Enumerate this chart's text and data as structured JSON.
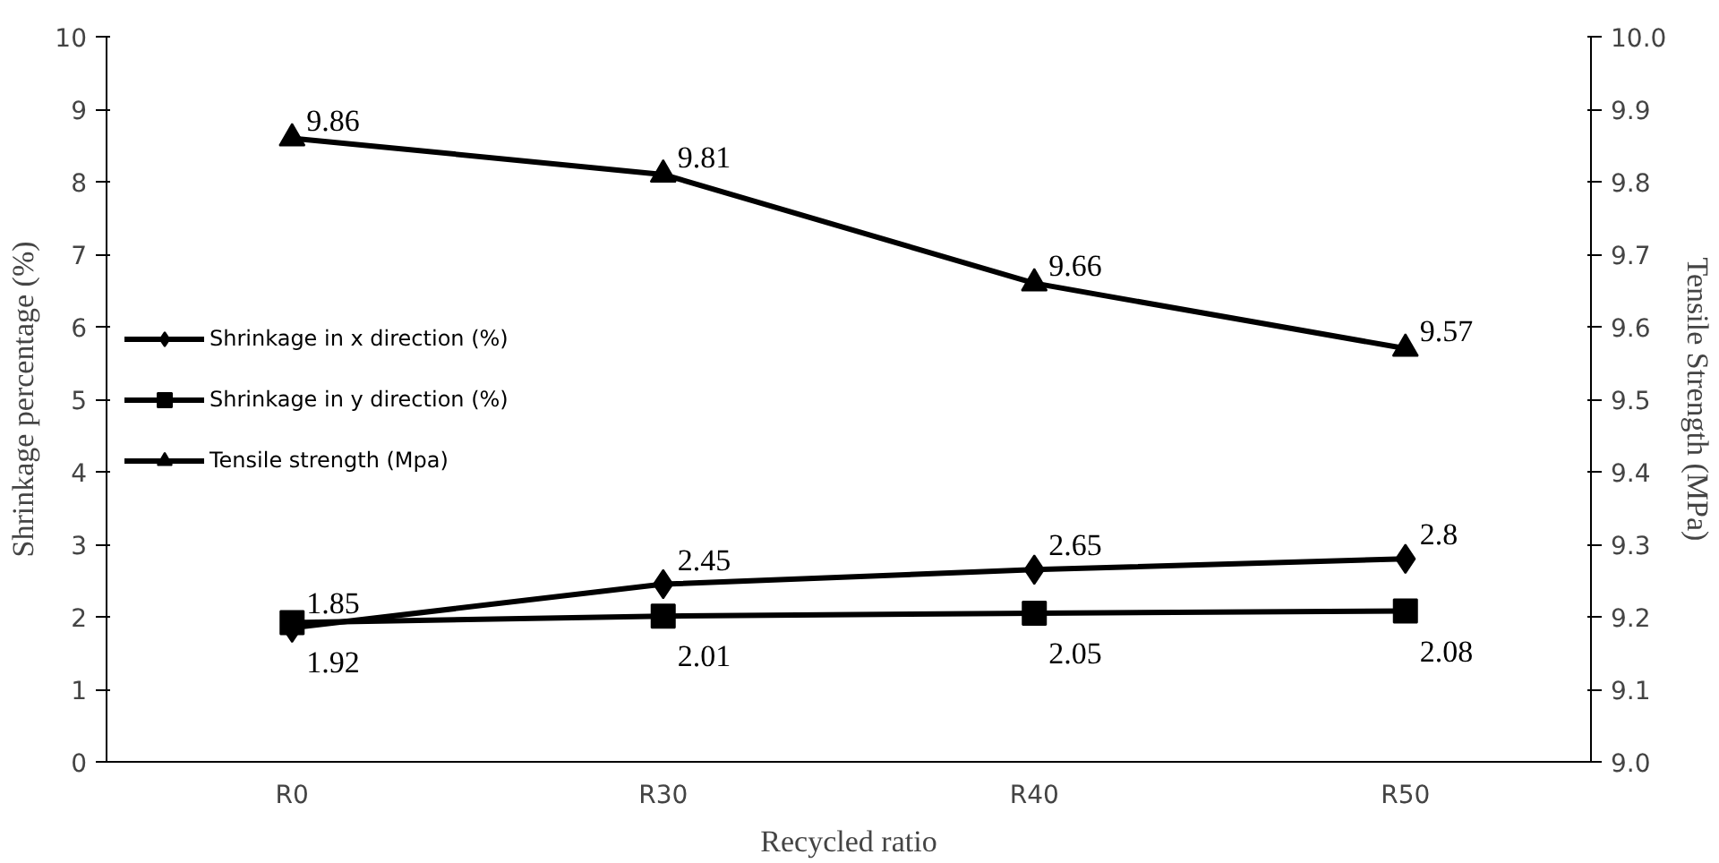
{
  "chart_data": {
    "type": "line",
    "xlabel": "Recycled ratio",
    "ylabel": "Shrinkage percentage (%)",
    "y2label": "Tensile Strength (MPa)",
    "categories": [
      "R0",
      "R30",
      "R40",
      "R50"
    ],
    "series": [
      {
        "name": "Shrinkage in x direction (%)",
        "color": "#000000",
        "marker": "diamond",
        "values": [
          1.85,
          2.45,
          2.65,
          2.8
        ]
      },
      {
        "name": "Shrinkage in y direction (%)",
        "color": "#000000",
        "marker": "square",
        "values": [
          1.92,
          2.01,
          2.05,
          2.08
        ]
      },
      {
        "name": "Tensile strength (Mpa)",
        "color": "#000000",
        "marker": "triangle",
        "axis": "y2",
        "values": [
          9.86,
          9.81,
          9.66,
          9.57
        ]
      }
    ],
    "ylim": [
      0,
      10
    ],
    "yticks": [
      0,
      1,
      2,
      3,
      4,
      5,
      6,
      7,
      8,
      9,
      10
    ],
    "y2lim": [
      9.0,
      10.0
    ],
    "y2ticks": [
      {
        "value": 9.0,
        "label": "9.0"
      },
      {
        "value": 9.1,
        "label": "9.1"
      },
      {
        "value": 9.2,
        "label": "9.2"
      },
      {
        "value": 9.3,
        "label": "9.3"
      },
      {
        "value": 9.4,
        "label": "9.4"
      },
      {
        "value": 9.5,
        "label": "9.5"
      },
      {
        "value": 9.6,
        "label": "9.6"
      },
      {
        "value": 9.7,
        "label": "9.7"
      },
      {
        "value": 9.8,
        "label": "9.8"
      },
      {
        "value": 9.9,
        "label": "9.9"
      },
      {
        "value": 10.0,
        "label": "10.0"
      }
    ],
    "data_labels": true,
    "grid": false,
    "legend": "left",
    "line_style": "solid"
  }
}
